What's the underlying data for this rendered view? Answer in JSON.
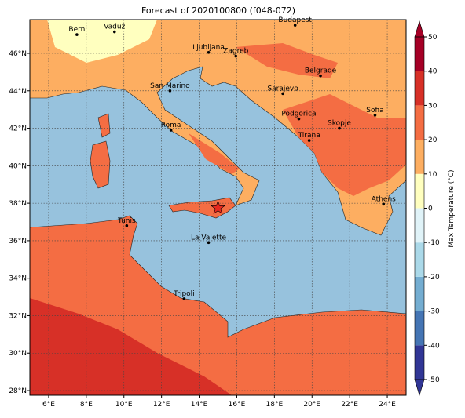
{
  "title": "Forecast of 2020100800 (f048-072)",
  "map": {
    "lonlim": [
      5,
      25
    ],
    "latlim": [
      27.75,
      47.8
    ],
    "lonticks": [
      {
        "value": 6,
        "label": "6°E"
      },
      {
        "value": 8,
        "label": "8°E"
      },
      {
        "value": 10,
        "label": "10°E"
      },
      {
        "value": 12,
        "label": "12°E"
      },
      {
        "value": 14,
        "label": "14°E"
      },
      {
        "value": 16,
        "label": "16°E"
      },
      {
        "value": 18,
        "label": "18°E"
      },
      {
        "value": 20,
        "label": "20°E"
      },
      {
        "value": 22,
        "label": "22°E"
      },
      {
        "value": 24,
        "label": "24°E"
      }
    ],
    "latticks": [
      {
        "value": 28,
        "label": "28°N"
      },
      {
        "value": 30,
        "label": "30°N"
      },
      {
        "value": 32,
        "label": "32°N"
      },
      {
        "value": 34,
        "label": "34°N"
      },
      {
        "value": 36,
        "label": "36°N"
      },
      {
        "value": 38,
        "label": "38°N"
      },
      {
        "value": 40,
        "label": "40°N"
      },
      {
        "value": 42,
        "label": "42°N"
      },
      {
        "value": 44,
        "label": "44°N"
      },
      {
        "value": 46,
        "label": "46°N"
      }
    ],
    "grid": true,
    "cities": [
      {
        "name": "Bern",
        "lon": 7.5,
        "lat": 47.0
      },
      {
        "name": "Vaduz",
        "lon": 9.5,
        "lat": 47.15
      },
      {
        "name": "Budapest",
        "lon": 19.1,
        "lat": 47.5
      },
      {
        "name": "Ljubljana",
        "lon": 14.5,
        "lat": 46.05
      },
      {
        "name": "Zagreb",
        "lon": 15.95,
        "lat": 45.85
      },
      {
        "name": "Belgrade",
        "lon": 20.45,
        "lat": 44.8
      },
      {
        "name": "San Marino",
        "lon": 12.45,
        "lat": 44.0
      },
      {
        "name": "Sarajevo",
        "lon": 18.45,
        "lat": 43.85
      },
      {
        "name": "Sofia",
        "lon": 23.35,
        "lat": 42.7
      },
      {
        "name": "Podgorica",
        "lon": 19.3,
        "lat": 42.5
      },
      {
        "name": "Skopje",
        "lon": 21.45,
        "lat": 42.0
      },
      {
        "name": "Roma",
        "lon": 12.5,
        "lat": 41.9
      },
      {
        "name": "Tirana",
        "lon": 19.85,
        "lat": 41.35
      },
      {
        "name": "Athens",
        "lon": 23.8,
        "lat": 37.95
      },
      {
        "name": "Tunis",
        "lon": 10.15,
        "lat": 36.8
      },
      {
        "name": "La Valette",
        "lon": 14.5,
        "lat": 35.9
      },
      {
        "name": "Tripoli",
        "lon": 13.2,
        "lat": 32.9
      }
    ],
    "marker": {
      "lon": 15.0,
      "lat": 37.75,
      "color": "#e8281e"
    }
  },
  "colorbar": {
    "label": "Max Temperature (°C)",
    "ticks": [
      -50,
      -40,
      -30,
      -20,
      -10,
      0,
      10,
      20,
      30,
      40,
      50
    ],
    "colors": [
      "#313695",
      "#4575b4",
      "#74add1",
      "#abd9e9",
      "#e0f3f8",
      "#ffffbf",
      "#fdae61",
      "#f46d43",
      "#d73027",
      "#a50026"
    ]
  }
}
